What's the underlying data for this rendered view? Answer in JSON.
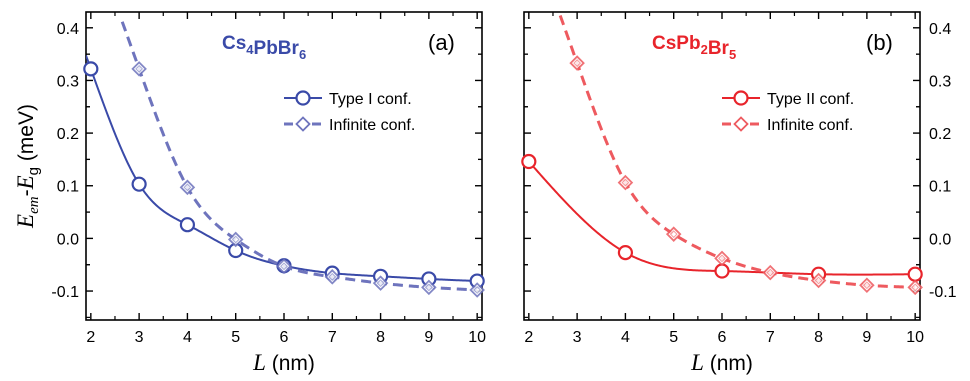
{
  "chart_data": [
    {
      "panel_label": "(a)",
      "type": "line",
      "material": {
        "base": "Cs",
        "parts": [
          [
            "Cs",
            "4"
          ],
          [
            "PbBr",
            "6"
          ]
        ]
      },
      "material_text": "Cs4PbBr6",
      "color": "#3a4aa8",
      "marker_color": "#3a4aa8",
      "dash_color": "#6e74bd",
      "xlabel_italic": "L",
      "xlabel_unit": " (nm)",
      "ylabel": {
        "e": "E",
        "sub1": "em",
        "dash": "-",
        "e2": "E",
        "sub2": "g",
        "unit": " (meV)"
      },
      "xlim": [
        1.9,
        10.1
      ],
      "ylim": [
        -0.155,
        0.43
      ],
      "x_ticks": [
        "2",
        "3",
        "4",
        "5",
        "6",
        "7",
        "8",
        "9",
        "10"
      ],
      "y_ticks": [
        "-0.1",
        "0.0",
        "0.1",
        "0.2",
        "0.3",
        "0.4"
      ],
      "y_tick_values": [
        -0.1,
        0.0,
        0.1,
        0.2,
        0.3,
        0.4
      ],
      "y_axis_side": "left",
      "legend": {
        "position": "right-top",
        "entries": [
          "Type I conf.",
          "Infinite conf."
        ]
      },
      "series": [
        {
          "name": "Type I conf.",
          "style": "solid",
          "marker": "circle",
          "x": [
            2,
            3,
            4,
            5,
            6,
            7,
            8,
            9,
            10
          ],
          "y": [
            0.322,
            0.103,
            0.026,
            -0.023,
            -0.052,
            -0.066,
            -0.072,
            -0.077,
            -0.081
          ]
        },
        {
          "name": "Infinite conf.",
          "style": "dashed",
          "marker": "diamond",
          "x": [
            3,
            4,
            5,
            6,
            7,
            8,
            9,
            10
          ],
          "y": [
            0.322,
            0.097,
            -0.002,
            -0.053,
            -0.073,
            -0.085,
            -0.093,
            -0.098
          ]
        }
      ]
    },
    {
      "panel_label": "(b)",
      "type": "line",
      "material": {
        "base": "CsPb",
        "parts": [
          [
            "CsPb",
            "2"
          ],
          [
            "Br",
            "5"
          ]
        ]
      },
      "material_text": "CsPb2Br5",
      "color": "#e8242b",
      "marker_color": "#e8242b",
      "dash_color": "#ee5a5f",
      "xlabel_italic": "L",
      "xlabel_unit": " (nm)",
      "xlim": [
        1.9,
        10.1
      ],
      "ylim": [
        -0.155,
        0.43
      ],
      "x_ticks": [
        "2",
        "3",
        "4",
        "5",
        "6",
        "7",
        "8",
        "9",
        "10"
      ],
      "y_ticks": [
        "-0.1",
        "0.0",
        "0.1",
        "0.2",
        "0.3",
        "0.4"
      ],
      "y_tick_values": [
        -0.1,
        0.0,
        0.1,
        0.2,
        0.3,
        0.4
      ],
      "y_axis_side": "right",
      "legend": {
        "position": "right-top",
        "entries": [
          "Type II conf.",
          "Infinite conf."
        ]
      },
      "series": [
        {
          "name": "Type II conf.",
          "style": "solid",
          "marker": "circle",
          "x": [
            2,
            4,
            6,
            8,
            10
          ],
          "y": [
            0.146,
            -0.027,
            -0.062,
            -0.068,
            -0.068
          ]
        },
        {
          "name": "Infinite conf.",
          "style": "dashed",
          "marker": "diamond",
          "x": [
            3,
            4,
            5,
            6,
            7,
            8,
            9,
            10
          ],
          "y": [
            0.333,
            0.106,
            0.008,
            -0.038,
            -0.065,
            -0.08,
            -0.089,
            -0.093
          ]
        }
      ]
    }
  ]
}
